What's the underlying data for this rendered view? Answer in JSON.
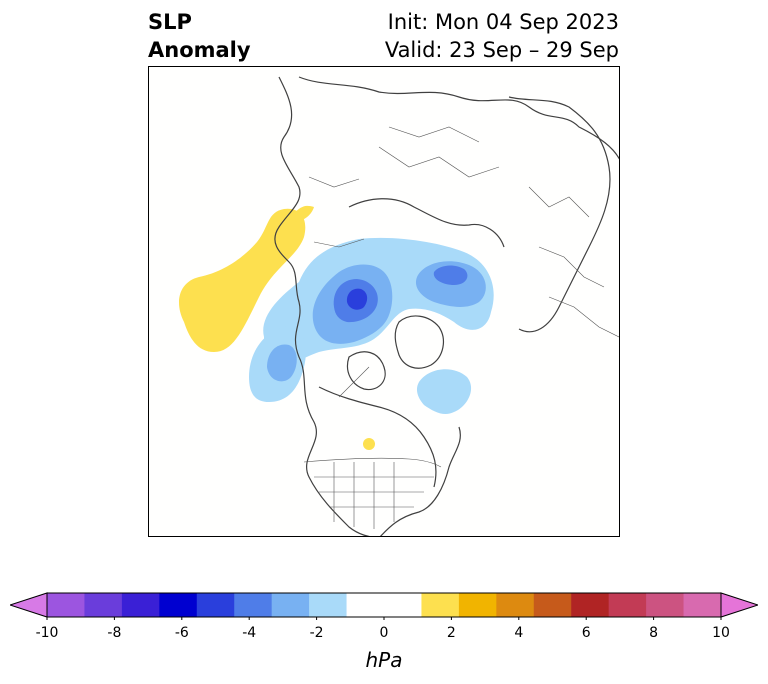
{
  "header": {
    "title_line1": "SLP",
    "title_line2": "Anomaly",
    "init_text": "Init: Mon 04 Sep 2023",
    "valid_text": "Valid: 23 Sep – 29 Sep"
  },
  "colorbar": {
    "units": "hPa",
    "ticks": [
      "-10",
      "-8",
      "-6",
      "-4",
      "-2",
      "0",
      "2",
      "4",
      "6",
      "8",
      "10"
    ],
    "levels": [
      -10,
      -9,
      -8,
      -7,
      -6,
      -5,
      -4,
      -3,
      -2,
      -1,
      1,
      2,
      3,
      4,
      5,
      6,
      7,
      8,
      9,
      10
    ],
    "colors": [
      "#d77ae6",
      "#9c55e0",
      "#6a3ddb",
      "#3a20d6",
      "#0000d0",
      "#2a3fdc",
      "#4f7de8",
      "#78b1f2",
      "#a9daf9",
      "#ffffff",
      "#ffffff",
      "#fde04f",
      "#f1b400",
      "#dd8a10",
      "#c65a1b",
      "#b02424",
      "#c23b55",
      "#cc5381",
      "#d86aaf",
      "#e574d8"
    ],
    "extend": "both"
  }
}
